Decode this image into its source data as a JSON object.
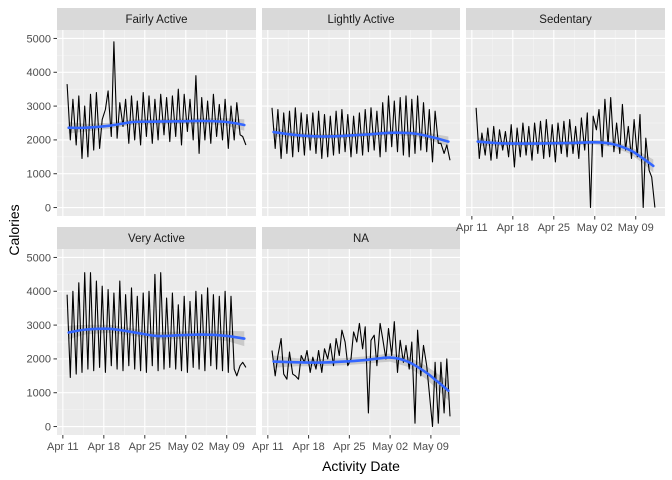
{
  "chart_data": {
    "type": "line",
    "layout": "facet_wrap",
    "xlabel": "Activity Date",
    "ylabel": "Calories",
    "x_ticks": [
      "Apr 11",
      "Apr 18",
      "Apr 25",
      "May 02",
      "May 09"
    ],
    "x_tick_dates": [
      "2016-04-11",
      "2016-04-18",
      "2016-04-25",
      "2016-05-02",
      "2016-05-09"
    ],
    "xlim": [
      "2016-04-10",
      "2016-05-14"
    ],
    "y_ticks": [
      0,
      1000,
      2000,
      3000,
      4000,
      5000
    ],
    "ylim": [
      -250,
      5250
    ],
    "grid": true,
    "smooth": true,
    "colors": {
      "panel_bg": "#ebebeb",
      "strip_bg": "#d9d9d9",
      "grid_major": "#ffffff",
      "grid_minor": "#f5f5f5",
      "line": "#000000",
      "smooth": "#3366ff",
      "ribbon": "#bebebe"
    },
    "panels": [
      {
        "name": "Fairly Active",
        "series": {
          "x": [
            "2016-04-12",
            "2016-04-12",
            "2016-04-13",
            "2016-04-13",
            "2016-04-14",
            "2016-04-14",
            "2016-04-15",
            "2016-04-15",
            "2016-04-16",
            "2016-04-16",
            "2016-04-17",
            "2016-04-17",
            "2016-04-18",
            "2016-04-18",
            "2016-04-19",
            "2016-04-19",
            "2016-04-20",
            "2016-04-20",
            "2016-04-21",
            "2016-04-21",
            "2016-04-22",
            "2016-04-22",
            "2016-04-23",
            "2016-04-23",
            "2016-04-24",
            "2016-04-24",
            "2016-04-25",
            "2016-04-25",
            "2016-04-26",
            "2016-04-26",
            "2016-04-27",
            "2016-04-27",
            "2016-04-28",
            "2016-04-28",
            "2016-04-29",
            "2016-04-29",
            "2016-04-30",
            "2016-04-30",
            "2016-05-01",
            "2016-05-01",
            "2016-05-02",
            "2016-05-02",
            "2016-05-03",
            "2016-05-03",
            "2016-05-04",
            "2016-05-04",
            "2016-05-05",
            "2016-05-05",
            "2016-05-06",
            "2016-05-06",
            "2016-05-07",
            "2016-05-07",
            "2016-05-08",
            "2016-05-08",
            "2016-05-09",
            "2016-05-09",
            "2016-05-10",
            "2016-05-10",
            "2016-05-11",
            "2016-05-11",
            "2016-05-12",
            "2016-05-12"
          ],
          "y": [
            3650,
            2000,
            3200,
            1850,
            3300,
            1450,
            3000,
            1500,
            3350,
            1700,
            3400,
            1750,
            2600,
            2900,
            3450,
            2100,
            4900,
            2050,
            3100,
            2400,
            3200,
            1900,
            3300,
            2000,
            3150,
            1850,
            3400,
            2100,
            3300,
            1900,
            3200,
            2000,
            3350,
            2150,
            3250,
            1950,
            3300,
            2100,
            3500,
            1850,
            3350,
            2250,
            3200,
            2000,
            3900,
            1600,
            3250,
            2000,
            3150,
            1900,
            3350,
            2100,
            3050,
            2000,
            3200,
            1750,
            3000,
            2000,
            3100,
            2150,
            2100,
            1850
          ]
        },
        "smooth": {
          "x": [
            "2016-04-12",
            "2016-04-15",
            "2016-04-19",
            "2016-04-23",
            "2016-04-27",
            "2016-05-01",
            "2016-05-05",
            "2016-05-09",
            "2016-05-12"
          ],
          "y": [
            2360,
            2360,
            2420,
            2530,
            2540,
            2550,
            2560,
            2530,
            2440
          ],
          "se": [
            170,
            110,
            90,
            80,
            80,
            80,
            85,
            110,
            170
          ]
        }
      },
      {
        "name": "Lightly Active",
        "series": {
          "x": [
            "2016-04-12",
            "2016-04-12",
            "2016-04-13",
            "2016-04-13",
            "2016-04-14",
            "2016-04-14",
            "2016-04-15",
            "2016-04-15",
            "2016-04-16",
            "2016-04-16",
            "2016-04-17",
            "2016-04-17",
            "2016-04-18",
            "2016-04-18",
            "2016-04-19",
            "2016-04-19",
            "2016-04-20",
            "2016-04-20",
            "2016-04-21",
            "2016-04-21",
            "2016-04-22",
            "2016-04-22",
            "2016-04-23",
            "2016-04-23",
            "2016-04-24",
            "2016-04-24",
            "2016-04-25",
            "2016-04-25",
            "2016-04-26",
            "2016-04-26",
            "2016-04-27",
            "2016-04-27",
            "2016-04-28",
            "2016-04-28",
            "2016-04-29",
            "2016-04-29",
            "2016-04-30",
            "2016-04-30",
            "2016-05-01",
            "2016-05-01",
            "2016-05-02",
            "2016-05-02",
            "2016-05-03",
            "2016-05-03",
            "2016-05-04",
            "2016-05-04",
            "2016-05-05",
            "2016-05-05",
            "2016-05-06",
            "2016-05-06",
            "2016-05-07",
            "2016-05-07",
            "2016-05-08",
            "2016-05-08",
            "2016-05-09",
            "2016-05-09",
            "2016-05-10",
            "2016-05-10",
            "2016-05-11",
            "2016-05-11",
            "2016-05-12",
            "2016-05-12"
          ],
          "y": [
            2950,
            1750,
            2900,
            1450,
            2800,
            1600,
            2850,
            1500,
            2950,
            1650,
            2800,
            1550,
            2750,
            1700,
            2800,
            1600,
            2850,
            1450,
            2750,
            1500,
            2700,
            1550,
            2850,
            1600,
            2900,
            1650,
            2750,
            1500,
            2700,
            1600,
            2800,
            1550,
            2900,
            1650,
            2950,
            1700,
            2850,
            1500,
            3100,
            1650,
            3300,
            1800,
            3150,
            1650,
            3250,
            1550,
            3300,
            1500,
            3200,
            1600,
            3300,
            1700,
            3100,
            1650,
            2900,
            1350,
            2850,
            1900,
            1900,
            1600,
            1850,
            1400
          ]
        },
        "smooth": {
          "x": [
            "2016-04-12",
            "2016-04-16",
            "2016-04-20",
            "2016-04-24",
            "2016-04-28",
            "2016-05-02",
            "2016-05-06",
            "2016-05-09",
            "2016-05-12"
          ],
          "y": [
            2230,
            2140,
            2100,
            2120,
            2160,
            2210,
            2190,
            2090,
            1950
          ],
          "se": [
            130,
            80,
            70,
            65,
            65,
            70,
            80,
            100,
            150
          ]
        }
      },
      {
        "name": "Sedentary",
        "series": {
          "x": [
            "2016-04-12",
            "2016-04-12",
            "2016-04-13",
            "2016-04-13",
            "2016-04-14",
            "2016-04-14",
            "2016-04-15",
            "2016-04-15",
            "2016-04-16",
            "2016-04-16",
            "2016-04-17",
            "2016-04-17",
            "2016-04-18",
            "2016-04-18",
            "2016-04-19",
            "2016-04-19",
            "2016-04-20",
            "2016-04-20",
            "2016-04-21",
            "2016-04-21",
            "2016-04-22",
            "2016-04-22",
            "2016-04-23",
            "2016-04-23",
            "2016-04-24",
            "2016-04-24",
            "2016-04-25",
            "2016-04-25",
            "2016-04-26",
            "2016-04-26",
            "2016-04-27",
            "2016-04-27",
            "2016-04-28",
            "2016-04-28",
            "2016-04-29",
            "2016-04-29",
            "2016-04-30",
            "2016-04-30",
            "2016-05-01",
            "2016-05-01",
            "2016-05-02",
            "2016-05-02",
            "2016-05-03",
            "2016-05-03",
            "2016-05-04",
            "2016-05-04",
            "2016-05-05",
            "2016-05-05",
            "2016-05-06",
            "2016-05-06",
            "2016-05-07",
            "2016-05-07",
            "2016-05-08",
            "2016-05-08",
            "2016-05-09",
            "2016-05-09",
            "2016-05-10",
            "2016-05-10",
            "2016-05-11",
            "2016-05-11",
            "2016-05-12",
            "2016-05-12"
          ],
          "y": [
            2950,
            1450,
            2200,
            1550,
            2350,
            1400,
            2400,
            1450,
            2300,
            1700,
            2250,
            1500,
            2450,
            1200,
            2350,
            1500,
            2500,
            1550,
            2400,
            1400,
            2500,
            1600,
            2550,
            1450,
            2600,
            1500,
            2450,
            1350,
            2500,
            1600,
            2550,
            1500,
            2600,
            1600,
            2400,
            1450,
            2650,
            1700,
            2800,
            0,
            2700,
            2300,
            2900,
            1500,
            3200,
            1850,
            3250,
            1650,
            2500,
            1600,
            3050,
            1700,
            2400,
            1450,
            2600,
            1500,
            2750,
            0,
            2050,
            1100,
            900,
            0
          ]
        },
        "smooth": {
          "x": [
            "2016-04-12",
            "2016-04-16",
            "2016-04-20",
            "2016-04-24",
            "2016-04-28",
            "2016-05-02",
            "2016-05-05",
            "2016-05-08",
            "2016-05-10",
            "2016-05-12"
          ],
          "y": [
            1950,
            1900,
            1890,
            1900,
            1910,
            1930,
            1880,
            1700,
            1480,
            1230
          ],
          "se": [
            120,
            75,
            65,
            65,
            65,
            70,
            90,
            110,
            140,
            190
          ]
        }
      },
      {
        "name": "Very Active",
        "series": {
          "x": [
            "2016-04-12",
            "2016-04-12",
            "2016-04-13",
            "2016-04-13",
            "2016-04-14",
            "2016-04-14",
            "2016-04-15",
            "2016-04-15",
            "2016-04-16",
            "2016-04-16",
            "2016-04-17",
            "2016-04-17",
            "2016-04-18",
            "2016-04-18",
            "2016-04-19",
            "2016-04-19",
            "2016-04-20",
            "2016-04-20",
            "2016-04-21",
            "2016-04-21",
            "2016-04-22",
            "2016-04-22",
            "2016-04-23",
            "2016-04-23",
            "2016-04-24",
            "2016-04-24",
            "2016-04-25",
            "2016-04-25",
            "2016-04-26",
            "2016-04-26",
            "2016-04-27",
            "2016-04-27",
            "2016-04-28",
            "2016-04-28",
            "2016-04-29",
            "2016-04-29",
            "2016-04-30",
            "2016-04-30",
            "2016-05-01",
            "2016-05-01",
            "2016-05-02",
            "2016-05-02",
            "2016-05-03",
            "2016-05-03",
            "2016-05-04",
            "2016-05-04",
            "2016-05-05",
            "2016-05-05",
            "2016-05-06",
            "2016-05-06",
            "2016-05-07",
            "2016-05-07",
            "2016-05-08",
            "2016-05-08",
            "2016-05-09",
            "2016-05-09",
            "2016-05-10",
            "2016-05-10",
            "2016-05-11",
            "2016-05-11",
            "2016-05-12",
            "2016-05-12"
          ],
          "y": [
            3900,
            1450,
            4000,
            1550,
            4250,
            1600,
            4550,
            1700,
            4550,
            1650,
            4300,
            1750,
            4150,
            1600,
            4050,
            1800,
            3950,
            1700,
            4300,
            1650,
            3900,
            1800,
            4100,
            1700,
            3850,
            1650,
            3950,
            1600,
            4000,
            1800,
            4500,
            1650,
            4550,
            1700,
            3800,
            1750,
            3950,
            1700,
            3600,
            1650,
            3850,
            1600,
            3700,
            1750,
            4000,
            1700,
            3900,
            1650,
            4100,
            1800,
            3900,
            1700,
            3850,
            1650,
            4000,
            1600,
            3850,
            1700,
            1500,
            1800,
            1900,
            1750
          ]
        },
        "smooth": {
          "x": [
            "2016-04-12",
            "2016-04-15",
            "2016-04-19",
            "2016-04-23",
            "2016-04-27",
            "2016-05-01",
            "2016-05-05",
            "2016-05-09",
            "2016-05-12"
          ],
          "y": [
            2780,
            2870,
            2890,
            2790,
            2680,
            2700,
            2720,
            2680,
            2600
          ],
          "se": [
            200,
            140,
            120,
            110,
            110,
            110,
            120,
            150,
            220
          ]
        }
      },
      {
        "name": "NA",
        "series": {
          "x": [
            "2016-04-12",
            "2016-04-12",
            "2016-04-13",
            "2016-04-13",
            "2016-04-14",
            "2016-04-14",
            "2016-04-15",
            "2016-04-15",
            "2016-04-16",
            "2016-04-16",
            "2016-04-17",
            "2016-04-17",
            "2016-04-18",
            "2016-04-18",
            "2016-04-19",
            "2016-04-19",
            "2016-04-20",
            "2016-04-20",
            "2016-04-21",
            "2016-04-21",
            "2016-04-22",
            "2016-04-22",
            "2016-04-23",
            "2016-04-23",
            "2016-04-24",
            "2016-04-24",
            "2016-04-25",
            "2016-04-25",
            "2016-04-26",
            "2016-04-26",
            "2016-04-27",
            "2016-04-27",
            "2016-04-28",
            "2016-04-28",
            "2016-04-29",
            "2016-04-29",
            "2016-04-30",
            "2016-04-30",
            "2016-05-01",
            "2016-05-01",
            "2016-05-02",
            "2016-05-02",
            "2016-05-03",
            "2016-05-03",
            "2016-05-04",
            "2016-05-04",
            "2016-05-05",
            "2016-05-05",
            "2016-05-06",
            "2016-05-06",
            "2016-05-07",
            "2016-05-07",
            "2016-05-08",
            "2016-05-08",
            "2016-05-09",
            "2016-05-09",
            "2016-05-10",
            "2016-05-10",
            "2016-05-11",
            "2016-05-11",
            "2016-05-12",
            "2016-05-12"
          ],
          "y": [
            2250,
            1500,
            2100,
            2600,
            1550,
            1400,
            2200,
            1550,
            1500,
            1400,
            2100,
            1900,
            2250,
            1600,
            2050,
            1700,
            2250,
            1600,
            2300,
            2000,
            2450,
            1800,
            2600,
            2100,
            2850,
            2500,
            1800,
            2000,
            2800,
            2500,
            3050,
            2300,
            2950,
            400,
            2550,
            2700,
            1800,
            3050,
            2600,
            2000,
            2900,
            2100,
            3100,
            1600,
            2550,
            1900,
            2400,
            1700,
            2500,
            100,
            2850,
            1500,
            2400,
            1800,
            1000,
            0,
            1900,
            100,
            1900,
            400,
            2000,
            300
          ]
        },
        "smooth": {
          "x": [
            "2016-04-12",
            "2016-04-16",
            "2016-04-20",
            "2016-04-24",
            "2016-04-28",
            "2016-05-02",
            "2016-05-05",
            "2016-05-08",
            "2016-05-10",
            "2016-05-12"
          ],
          "y": [
            1920,
            1900,
            1890,
            1920,
            1970,
            2040,
            1920,
            1620,
            1350,
            1060
          ],
          "se": [
            180,
            120,
            110,
            105,
            110,
            120,
            150,
            190,
            230,
            290
          ]
        }
      }
    ]
  }
}
